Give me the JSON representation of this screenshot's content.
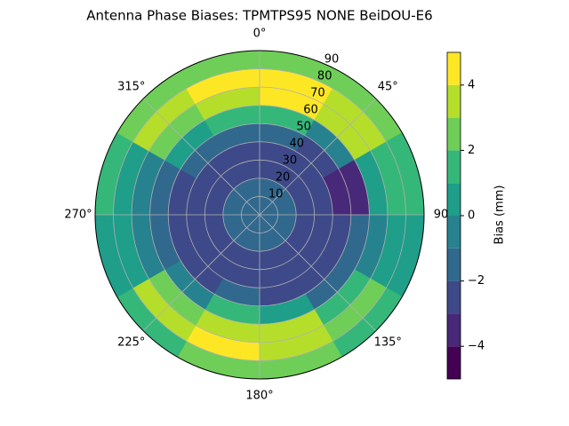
{
  "chart_data": {
    "type": "polar_contour",
    "title": "Antenna Phase Biases: TPMTPS95        NONE BeiDOU-E6",
    "colorbar_label": "Bias (mm)",
    "r_bins": [
      0,
      10,
      20,
      30,
      40,
      50,
      60,
      70,
      80,
      90
    ],
    "az_bins": [
      0,
      30,
      60,
      90,
      120,
      150,
      180,
      210,
      240,
      270,
      300,
      330,
      360
    ],
    "values": [
      [
        -1.5,
        -1.5,
        -1.5,
        -1.5,
        -1.5,
        -1.5,
        -1.5,
        -1.5,
        -1.5,
        -1.5,
        -1.5,
        -1.5
      ],
      [
        -1.5,
        -1.6,
        -1.6,
        -1.5,
        -1.5,
        -1.5,
        -1.5,
        -1.6,
        -1.6,
        -1.5,
        -1.5,
        -1.5
      ],
      [
        -2.2,
        -2.3,
        -2.4,
        -2.3,
        -2.2,
        -2.2,
        -2.3,
        -2.4,
        -2.4,
        -2.3,
        -2.2,
        -2.2
      ],
      [
        -2.5,
        -2.8,
        -2.6,
        -2.4,
        -2.5,
        -2.5,
        -2.5,
        -2.6,
        -2.7,
        -2.7,
        -2.5,
        -2.4
      ],
      [
        -1.5,
        -2.8,
        -3.2,
        -2.6,
        -2.6,
        -2.3,
        -1.8,
        -2.2,
        -2.6,
        -2.8,
        -2.0,
        -1.2
      ],
      [
        1.5,
        -1.0,
        -3.5,
        -1.5,
        -2.0,
        0.5,
        1.2,
        -0.5,
        -1.8,
        -1.5,
        0.5,
        1.5
      ],
      [
        4.2,
        3.2,
        0.5,
        -0.5,
        1.5,
        3.2,
        3.5,
        2.5,
        -0.5,
        -0.2,
        2.5,
        3.8
      ],
      [
        4.5,
        3.5,
        1.5,
        0.5,
        2.8,
        3.8,
        4.0,
        3.0,
        0.5,
        0.8,
        3.0,
        4.2
      ],
      [
        2.5,
        2.0,
        1.0,
        0.5,
        1.5,
        2.2,
        2.5,
        1.8,
        0.8,
        1.0,
        2.0,
        2.5
      ]
    ],
    "levels": [
      -5,
      -4,
      -3,
      -2,
      -1,
      0,
      1,
      2,
      3,
      4,
      5
    ],
    "colors": [
      "#440154",
      "#482878",
      "#3e4989",
      "#31688e",
      "#26828e",
      "#1f9e89",
      "#35b779",
      "#6ece58",
      "#b5de2b",
      "#fde725"
    ],
    "rlim": [
      0,
      90
    ],
    "rticks": [
      10,
      20,
      30,
      40,
      50,
      60,
      70,
      80,
      90
    ],
    "thetaticks": [
      {
        "value": 0,
        "label": "0°"
      },
      {
        "value": 45,
        "label": "45°"
      },
      90,
      {
        "value": 135,
        "label": "135°"
      },
      {
        "value": 180,
        "label": "180°"
      },
      {
        "value": 225,
        "label": "225°"
      },
      {
        "value": 270,
        "label": "270°"
      },
      {
        "value": 315,
        "label": "315°"
      }
    ],
    "clim": [
      -5,
      5
    ],
    "cticks": [
      {
        "value": -4,
        "label": "−4"
      },
      {
        "value": -2,
        "label": "−2"
      },
      0,
      2,
      4
    ],
    "grid": true
  }
}
